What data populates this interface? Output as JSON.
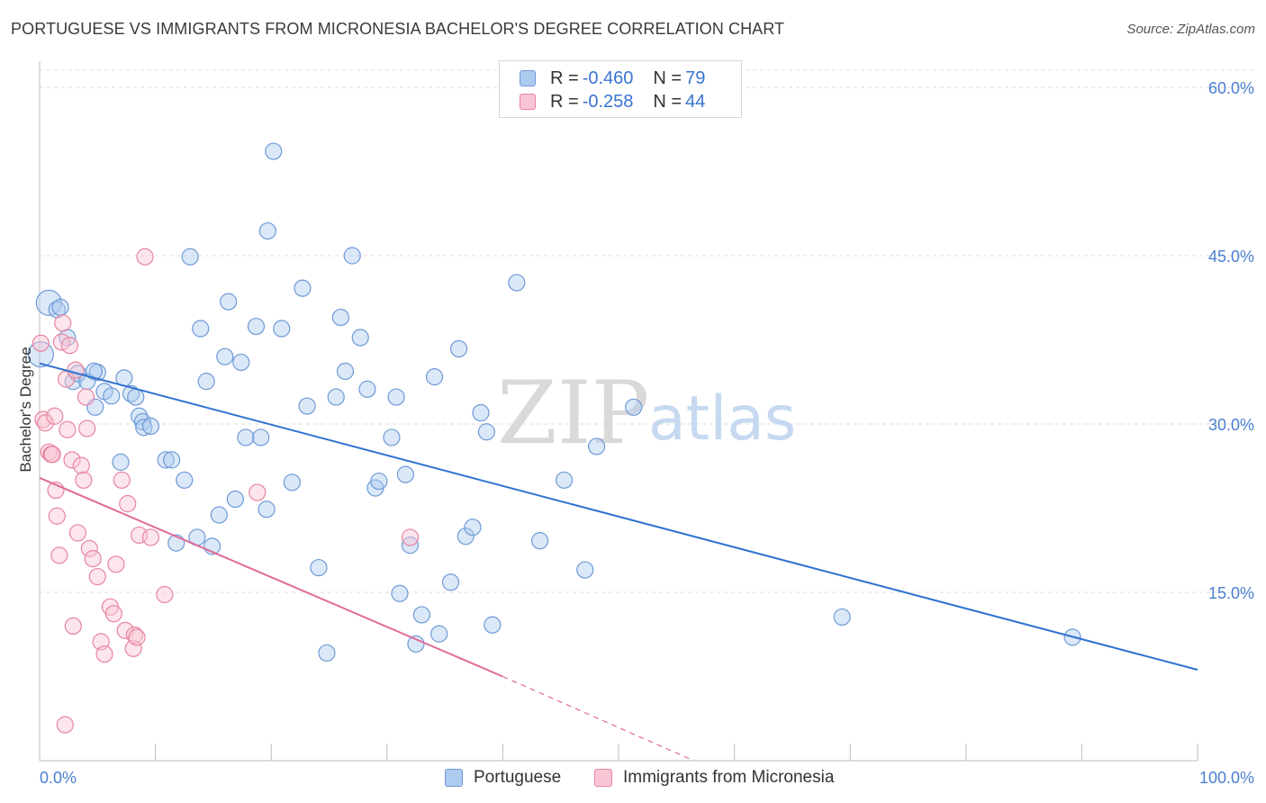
{
  "title": "PORTUGUESE VS IMMIGRANTS FROM MICRONESIA BACHELOR'S DEGREE CORRELATION CHART",
  "source": "Source: ZipAtlas.com",
  "watermark": {
    "zip": "ZIP",
    "atlas": "atlas"
  },
  "legend": {
    "rows": [
      {
        "r_label": "R =",
        "r_value": "-0.460",
        "n_label": "N =",
        "n_value": "79",
        "color": "#aecbf0",
        "border": "#6f9ad6"
      },
      {
        "r_label": "R =",
        "r_value": "-0.258",
        "n_label": "N =",
        "n_value": "44",
        "color": "#f8c5d5",
        "border": "#e8849f"
      }
    ]
  },
  "bottom_legend": [
    {
      "label": "Portuguese",
      "color": "#aecbf0",
      "border": "#6f9ad6"
    },
    {
      "label": "Immigrants from Micronesia",
      "color": "#f8c5d5",
      "border": "#e8849f"
    }
  ],
  "chart_data": {
    "type": "scatter",
    "title": "PORTUGUESE VS IMMIGRANTS FROM MICRONESIA BACHELOR'S DEGREE CORRELATION CHART",
    "xlabel": "",
    "ylabel": "Bachelor's Degree",
    "xlim": [
      0,
      100
    ],
    "ylim": [
      0,
      60
    ],
    "x_tick_labels": [
      "0.0%",
      "100.0%"
    ],
    "y_ticks": [
      15,
      30,
      45,
      60
    ],
    "y_tick_labels": [
      "15.0%",
      "30.0%",
      "45.0%",
      "60.0%"
    ],
    "grid": true,
    "series": [
      {
        "name": "Portuguese",
        "color": "#6f9ad6",
        "fill": "rgba(174,203,240,0.45)",
        "line_color": "#2f72d0",
        "trend": {
          "x": [
            0,
            100
          ],
          "y": [
            35.4,
            8.1
          ]
        },
        "points": [
          [
            0.1,
            36.2
          ],
          [
            0.8,
            40.8
          ],
          [
            1.5,
            40.2
          ],
          [
            1.8,
            40.4
          ],
          [
            2.4,
            37.7
          ],
          [
            2.9,
            33.8
          ],
          [
            3.3,
            34.5
          ],
          [
            4.1,
            33.8
          ],
          [
            4.8,
            31.5
          ],
          [
            5.0,
            34.6
          ],
          [
            5.6,
            32.9
          ],
          [
            6.2,
            32.5
          ],
          [
            7.3,
            34.1
          ],
          [
            7.0,
            26.6
          ],
          [
            7.9,
            32.7
          ],
          [
            8.3,
            32.4
          ],
          [
            8.6,
            30.7
          ],
          [
            8.9,
            30.2
          ],
          [
            9.0,
            29.7
          ],
          [
            9.6,
            29.8
          ],
          [
            10.9,
            26.8
          ],
          [
            11.4,
            26.8
          ],
          [
            11.8,
            19.4
          ],
          [
            12.5,
            25.0
          ],
          [
            13.0,
            44.9
          ],
          [
            13.6,
            19.9
          ],
          [
            13.9,
            38.5
          ],
          [
            14.4,
            33.8
          ],
          [
            14.9,
            19.1
          ],
          [
            15.5,
            21.9
          ],
          [
            16.0,
            36.0
          ],
          [
            16.3,
            40.9
          ],
          [
            16.9,
            23.3
          ],
          [
            17.4,
            35.5
          ],
          [
            17.8,
            28.8
          ],
          [
            18.7,
            38.7
          ],
          [
            19.1,
            28.8
          ],
          [
            19.6,
            22.4
          ],
          [
            19.7,
            47.2
          ],
          [
            20.2,
            54.3
          ],
          [
            20.9,
            38.5
          ],
          [
            21.8,
            24.8
          ],
          [
            22.7,
            42.1
          ],
          [
            23.1,
            31.6
          ],
          [
            24.1,
            17.2
          ],
          [
            24.8,
            9.6
          ],
          [
            25.6,
            32.4
          ],
          [
            26.0,
            39.5
          ],
          [
            26.4,
            34.7
          ],
          [
            27.0,
            45.0
          ],
          [
            27.7,
            37.7
          ],
          [
            28.3,
            33.1
          ],
          [
            29.0,
            24.3
          ],
          [
            29.3,
            24.9
          ],
          [
            30.4,
            28.8
          ],
          [
            30.8,
            32.4
          ],
          [
            31.1,
            14.9
          ],
          [
            31.6,
            25.5
          ],
          [
            32.0,
            19.2
          ],
          [
            32.5,
            10.4
          ],
          [
            33.0,
            13.0
          ],
          [
            34.1,
            34.2
          ],
          [
            34.5,
            11.3
          ],
          [
            35.5,
            15.9
          ],
          [
            36.2,
            36.7
          ],
          [
            36.8,
            20.0
          ],
          [
            37.4,
            20.8
          ],
          [
            38.1,
            31.0
          ],
          [
            38.6,
            29.3
          ],
          [
            39.1,
            12.1
          ],
          [
            41.2,
            42.6
          ],
          [
            43.2,
            19.6
          ],
          [
            45.3,
            25.0
          ],
          [
            47.1,
            17.0
          ],
          [
            48.1,
            28.0
          ],
          [
            51.3,
            31.5
          ],
          [
            69.3,
            12.8
          ],
          [
            89.2,
            11.0
          ],
          [
            4.7,
            34.7
          ]
        ]
      },
      {
        "name": "Immigrants from Micronesia",
        "color": "#e8849f",
        "fill": "rgba(248,197,213,0.45)",
        "line_color": "#e06a96",
        "trend": {
          "x": [
            0,
            40
          ],
          "y": [
            25.2,
            7.5
          ]
        },
        "trend_dashed": {
          "x": [
            40,
            56.5
          ],
          "y": [
            7.5,
            0
          ]
        },
        "points": [
          [
            0.1,
            37.2
          ],
          [
            0.3,
            30.4
          ],
          [
            0.5,
            30.1
          ],
          [
            0.8,
            27.5
          ],
          [
            1.0,
            27.3
          ],
          [
            1.3,
            30.7
          ],
          [
            1.4,
            24.1
          ],
          [
            1.5,
            21.8
          ],
          [
            1.7,
            18.3
          ],
          [
            1.9,
            37.3
          ],
          [
            2.0,
            39.0
          ],
          [
            2.2,
            3.2
          ],
          [
            2.3,
            34.0
          ],
          [
            2.4,
            29.5
          ],
          [
            2.6,
            37.0
          ],
          [
            2.8,
            26.8
          ],
          [
            2.9,
            12.0
          ],
          [
            3.1,
            34.8
          ],
          [
            3.3,
            20.3
          ],
          [
            3.6,
            26.3
          ],
          [
            3.8,
            25.0
          ],
          [
            4.0,
            32.4
          ],
          [
            4.1,
            29.6
          ],
          [
            4.3,
            18.9
          ],
          [
            4.6,
            18.0
          ],
          [
            5.0,
            16.4
          ],
          [
            5.3,
            10.6
          ],
          [
            5.6,
            9.5
          ],
          [
            6.1,
            13.7
          ],
          [
            6.4,
            13.1
          ],
          [
            6.6,
            17.5
          ],
          [
            7.1,
            25.0
          ],
          [
            7.4,
            11.6
          ],
          [
            7.6,
            22.9
          ],
          [
            8.1,
            10.0
          ],
          [
            8.2,
            11.2
          ],
          [
            8.4,
            11.0
          ],
          [
            8.6,
            20.1
          ],
          [
            9.1,
            44.9
          ],
          [
            9.6,
            19.9
          ],
          [
            10.8,
            14.8
          ],
          [
            18.8,
            23.9
          ],
          [
            32.0,
            19.9
          ],
          [
            1.1,
            27.3
          ]
        ]
      }
    ]
  }
}
